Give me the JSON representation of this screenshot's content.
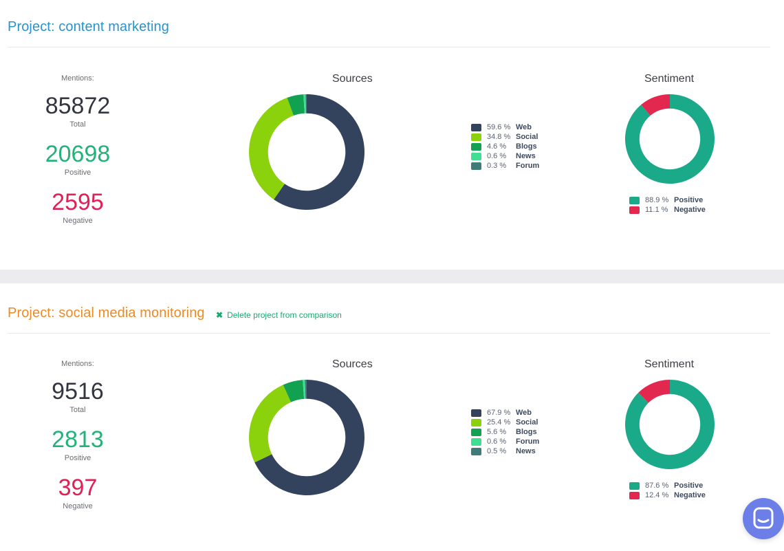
{
  "projects": [
    {
      "title": "Project: content marketing",
      "stats": {
        "mentions_label": "Mentions:",
        "total": "85872",
        "total_label": "Total",
        "positive": "20698",
        "positive_label": "Positive",
        "negative": "2595",
        "negative_label": "Negative"
      }
    },
    {
      "title": "Project: social media monitoring",
      "delete_label": "Delete project from comparison",
      "stats": {
        "mentions_label": "Mentions:",
        "total": "9516",
        "total_label": "Total",
        "positive": "2813",
        "positive_label": "Positive",
        "negative": "397",
        "negative_label": "Negative"
      }
    }
  ],
  "colors": {
    "web": "#33435e",
    "social": "#8bd10c",
    "blogs": "#12a051",
    "news_1": "#3fde92",
    "forum_1": "#3f7c79",
    "forum_2": "#3fde92",
    "news_2": "#3f7c79",
    "positive": "#1aa989",
    "negative": "#e3284f"
  },
  "chart_data": [
    {
      "type": "pie",
      "title": "Sources",
      "series": [
        {
          "name": "Web",
          "value": 59.6,
          "label": "59.6 %",
          "color": "#33435e"
        },
        {
          "name": "Social",
          "value": 34.8,
          "label": "34.8 %",
          "color": "#8bd10c"
        },
        {
          "name": "Blogs",
          "value": 4.6,
          "label": "4.6 %",
          "color": "#12a051"
        },
        {
          "name": "News",
          "value": 0.6,
          "label": "0.6 %",
          "color": "#3fde92"
        },
        {
          "name": "Forum",
          "value": 0.3,
          "label": "0.3 %",
          "color": "#3f7c79"
        }
      ],
      "legend_position": "right"
    },
    {
      "type": "pie",
      "title": "Sentiment",
      "series": [
        {
          "name": "Positive",
          "value": 88.9,
          "label": "88.9 %",
          "color": "#1aa989"
        },
        {
          "name": "Negative",
          "value": 11.1,
          "label": "11.1 %",
          "color": "#e3284f"
        }
      ],
      "legend_position": "bottom"
    },
    {
      "type": "pie",
      "title": "Sources",
      "series": [
        {
          "name": "Web",
          "value": 67.9,
          "label": "67.9 %",
          "color": "#33435e"
        },
        {
          "name": "Social",
          "value": 25.4,
          "label": "25.4 %",
          "color": "#8bd10c"
        },
        {
          "name": "Blogs",
          "value": 5.6,
          "label": "5.6 %",
          "color": "#12a051"
        },
        {
          "name": "Forum",
          "value": 0.6,
          "label": "0.6 %",
          "color": "#3fde92"
        },
        {
          "name": "News",
          "value": 0.5,
          "label": "0.5 %",
          "color": "#3f7c79"
        }
      ],
      "legend_position": "right"
    },
    {
      "type": "pie",
      "title": "Sentiment",
      "series": [
        {
          "name": "Positive",
          "value": 87.6,
          "label": "87.6 %",
          "color": "#1aa989"
        },
        {
          "name": "Negative",
          "value": 12.4,
          "label": "12.4 %",
          "color": "#e3284f"
        }
      ],
      "legend_position": "bottom"
    }
  ],
  "chat": {
    "icon": "chat-bubble-icon"
  }
}
